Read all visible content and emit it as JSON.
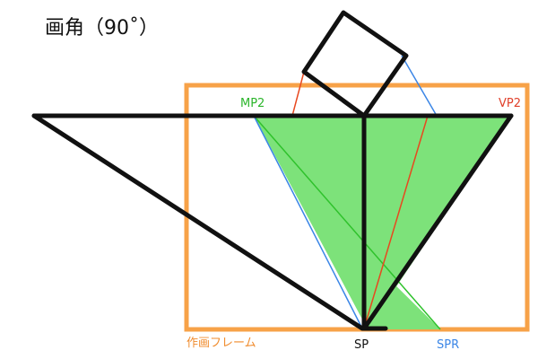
{
  "title": "画角（90˚）",
  "labels": {
    "mp2": "MP2",
    "vp2": "VP2",
    "sp": "SP",
    "spr": "SPR",
    "frame": "作画フレーム"
  },
  "colors": {
    "frame": "#f7a248",
    "black": "#111111",
    "green_fill": "#7de27a",
    "green_line": "#2fc22c",
    "red_line": "#e8481f",
    "blue_line": "#3b86e6",
    "mp2_label": "#2bb52b",
    "vp2_label": "#e0402a",
    "spr_label": "#3b86e6",
    "frame_label": "#f08c2e"
  }
}
